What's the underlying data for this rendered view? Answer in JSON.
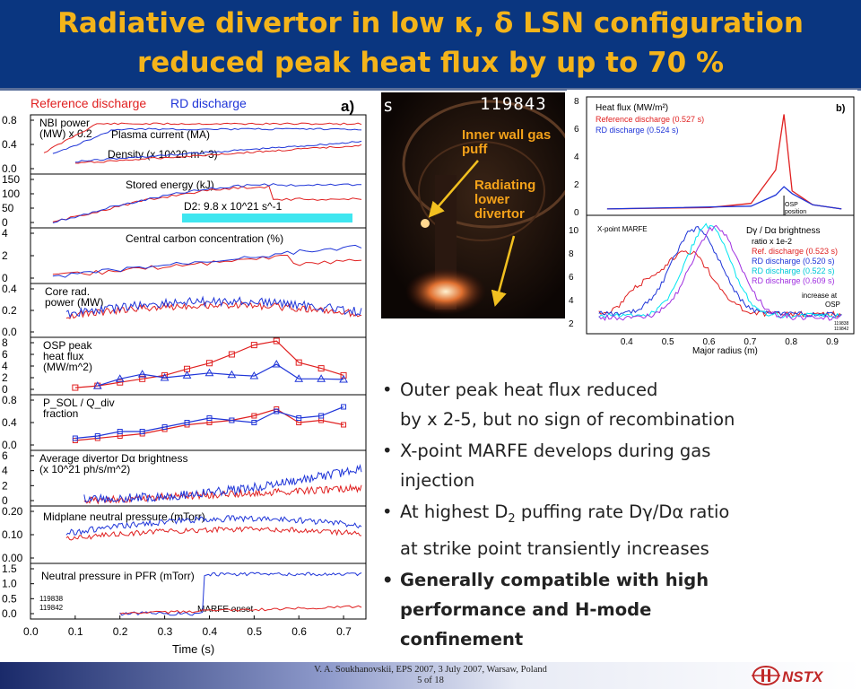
{
  "header": {
    "line1": "Radiative divertor in low κ, δ LSN configuration",
    "line2": "reduced peak heat flux by up to 70 %"
  },
  "colors": {
    "reference": "#e02020",
    "rd": "#1f35d8",
    "cyan": "#00e5f0",
    "purple": "#a030e0",
    "title": "#f4b41a",
    "header_bg": "#0a3680"
  },
  "left_figure": {
    "legend_ref": "Reference discharge",
    "legend_rd": "RD discharge",
    "panel_tag": "a)",
    "xlabel": "Time (s)",
    "xticks": [
      "0.0",
      "0.1",
      "0.2",
      "0.3",
      "0.4",
      "0.5",
      "0.6",
      "0.7"
    ],
    "shots": [
      "119838",
      "119842"
    ],
    "panels": [
      {
        "labels": [
          "NBI power",
          "(MW) x 0.2",
          "Plasma current (MA)",
          "Density (x 10^20 m^-3)"
        ],
        "yticks": [
          "0.8",
          "0.4",
          "0.0"
        ]
      },
      {
        "labels": [
          "Stored energy (kJ)",
          "D2:  9.8 x 10^21 s^-1"
        ],
        "yticks": [
          "150",
          "100",
          "50",
          "0"
        ]
      },
      {
        "labels": [
          "Central carbon concentration (%)"
        ],
        "yticks": [
          "4",
          "2",
          "0"
        ]
      },
      {
        "labels": [
          "Core rad.",
          "power (MW)"
        ],
        "yticks": [
          "0.4",
          "0.2",
          "0.0"
        ]
      },
      {
        "labels": [
          "OSP peak",
          "heat flux",
          "(MW/m^2)"
        ],
        "yticks": [
          "8",
          "6",
          "4",
          "2",
          "0"
        ]
      },
      {
        "labels": [
          "P_SOL / Q_div",
          "fraction"
        ],
        "yticks": [
          "0.8",
          "0.4",
          "0.0"
        ]
      },
      {
        "labels": [
          "Average divertor Dα brightness",
          "(x 10^21 ph/s/m^2)"
        ],
        "yticks": [
          "6",
          "4",
          "2",
          "0"
        ]
      },
      {
        "labels": [
          "Midplane neutral pressure (mTorr)"
        ],
        "yticks": [
          "0.20",
          "0.10",
          "0.00"
        ]
      },
      {
        "labels": [
          "Neutral pressure in PFR  (mTorr)",
          "MARFE onset"
        ],
        "yticks": [
          "1.5",
          "1.0",
          "0.5",
          "0.0"
        ]
      }
    ]
  },
  "photo": {
    "shot": "119843",
    "s": "s",
    "label1": "Inner wall gas puff",
    "label2": "Radiating lower divertor"
  },
  "right_figure": {
    "tag": "b)",
    "top": {
      "yticks": [
        "8",
        "6",
        "4",
        "2",
        "0"
      ],
      "title": "Heat flux (MW/m²)",
      "legend": [
        "Reference discharge (0.527 s)",
        "RD discharge (0.524 s)"
      ],
      "annot": [
        "OSP",
        "position"
      ]
    },
    "bottom": {
      "yticks": [
        "10",
        "8",
        "6",
        "4",
        "2"
      ],
      "title": "Dγ / Dα brightness",
      "title2": "ratio x 1e-2",
      "legend": [
        "Ref. discharge (0.523 s)",
        "RD discharge (0.520 s)",
        "RD discharge (0.522 s)",
        "RD discharge (0.609 s)"
      ],
      "marfe": "X-point MARFE",
      "increase": [
        "increase at",
        "OSP"
      ],
      "shots": [
        "119838",
        "119842"
      ]
    },
    "xticks": [
      "0.4",
      "0.5",
      "0.6",
      "0.7",
      "0.8",
      "0.9"
    ],
    "xlabel": "Major radius (m)"
  },
  "bullets": [
    {
      "l1": "Outer peak heat flux reduced",
      "l2": "by x 2-5, but no sign of recombination"
    },
    {
      "l1": "X-point MARFE develops during gas",
      "l2": "injection"
    },
    {
      "l1a": "At highest D",
      "l1sub": "2",
      "l1b": " puffing rate Dγ/Dα ratio",
      "l2": "at strike point transiently increases"
    },
    {
      "l1": "Generally compatible with high",
      "l2": "performance and H-mode",
      "l3": "confinement"
    }
  ],
  "footer": {
    "line1": "V. A. Soukhanovskii, EPS 2007, 3 July 2007, Warsaw, Poland",
    "line2": "5 of 18",
    "logo": "NSTX"
  },
  "chart_data": [
    {
      "type": "line",
      "title": "",
      "xlabel": "Time (s)",
      "xlim": [
        0,
        0.75
      ],
      "series": [
        {
          "name": "Reference discharge",
          "panel": "OSP peak heat flux (MW/m^2)",
          "x": [
            0.1,
            0.15,
            0.2,
            0.25,
            0.3,
            0.35,
            0.4,
            0.45,
            0.5,
            0.55,
            0.6,
            0.65,
            0.7
          ],
          "values": [
            0.3,
            0.6,
            1.2,
            1.8,
            2.4,
            3.5,
            4.5,
            6.0,
            7.6,
            8.3,
            4.6,
            3.6,
            2.4
          ]
        },
        {
          "name": "RD discharge",
          "panel": "OSP peak heat flux (MW/m^2)",
          "x": [
            0.15,
            0.2,
            0.25,
            0.3,
            0.35,
            0.4,
            0.45,
            0.5,
            0.55,
            0.6,
            0.65,
            0.7
          ],
          "values": [
            0.6,
            1.8,
            2.6,
            2.0,
            2.4,
            2.8,
            2.5,
            2.3,
            4.3,
            1.8,
            1.8,
            1.7
          ]
        }
      ]
    },
    {
      "type": "line",
      "title": "",
      "xlabel": "Major radius (m)",
      "xlim": [
        0.3,
        0.95
      ],
      "series": [
        {
          "name": "Reference discharge (0.527 s)",
          "panel": "Heat flux (MW/m²)",
          "x": [
            0.35,
            0.6,
            0.7,
            0.76,
            0.78,
            0.8,
            0.85,
            0.92
          ],
          "values": [
            0.2,
            0.3,
            0.6,
            3,
            7,
            1.5,
            0.5,
            0.2
          ]
        },
        {
          "name": "RD discharge (0.524 s)",
          "panel": "Heat flux (MW/m²)",
          "x": [
            0.35,
            0.7,
            0.76,
            0.78,
            0.8,
            0.85,
            0.92
          ],
          "values": [
            0.2,
            0.4,
            1.2,
            1.8,
            1.3,
            0.5,
            0.2
          ]
        }
      ]
    }
  ]
}
